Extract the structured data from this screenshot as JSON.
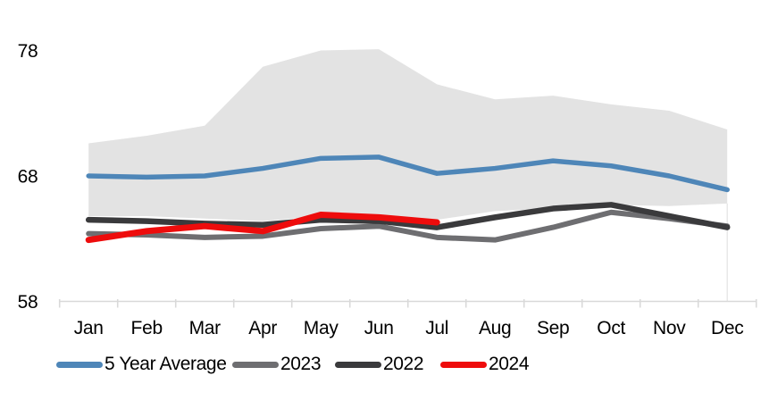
{
  "chart_data": {
    "type": "line",
    "title": "",
    "xlabel": "",
    "ylabel": "",
    "categories": [
      "Jan",
      "Feb",
      "Mar",
      "Apr",
      "May",
      "Jun",
      "Jul",
      "Aug",
      "Sep",
      "Oct",
      "Nov",
      "Dec"
    ],
    "yticks": [
      58,
      68,
      78
    ],
    "ylim": [
      58,
      79.5
    ],
    "grid": "off",
    "axis_color": "#d9d9d9",
    "band": {
      "name": "5-year-range-band",
      "color": "#e3e3e3",
      "top": [
        70.6,
        71.2,
        72.0,
        76.7,
        78.0,
        78.1,
        75.3,
        74.1,
        74.4,
        73.7,
        73.2,
        71.7
      ],
      "bottom": [
        64.8,
        64.8,
        64.6,
        64.4,
        64.8,
        64.9,
        64.5,
        65.2,
        65.4,
        65.7,
        65.6,
        65.8
      ]
    },
    "series": [
      {
        "name": "5 Year Average",
        "color": "#4e86b8",
        "stroke_width": 5.5,
        "values": [
          68.0,
          67.9,
          68.0,
          68.6,
          69.4,
          69.5,
          68.2,
          68.6,
          69.2,
          68.8,
          68.0,
          66.9
        ]
      },
      {
        "name": "2023",
        "color": "#6e6e71",
        "stroke_width": 6,
        "values": [
          63.4,
          63.3,
          63.1,
          63.2,
          63.8,
          64.0,
          63.1,
          62.9,
          63.9,
          65.1,
          64.6,
          64.0
        ]
      },
      {
        "name": "2022",
        "color": "#3a3a3c",
        "stroke_width": 6.5,
        "values": [
          64.5,
          64.4,
          64.2,
          64.1,
          64.5,
          64.4,
          63.9,
          64.7,
          65.4,
          65.7,
          64.8,
          63.9
        ]
      },
      {
        "name": "2024",
        "color": "#ee0c0c",
        "stroke_width": 7,
        "values": [
          62.9,
          63.6,
          64.0,
          63.6,
          64.9,
          64.7,
          64.3
        ]
      }
    ],
    "legend": {
      "position": "bottom"
    },
    "annotations": {
      "last_category_marker": "Dec",
      "marker_line_color": "#e2e2e2"
    }
  }
}
